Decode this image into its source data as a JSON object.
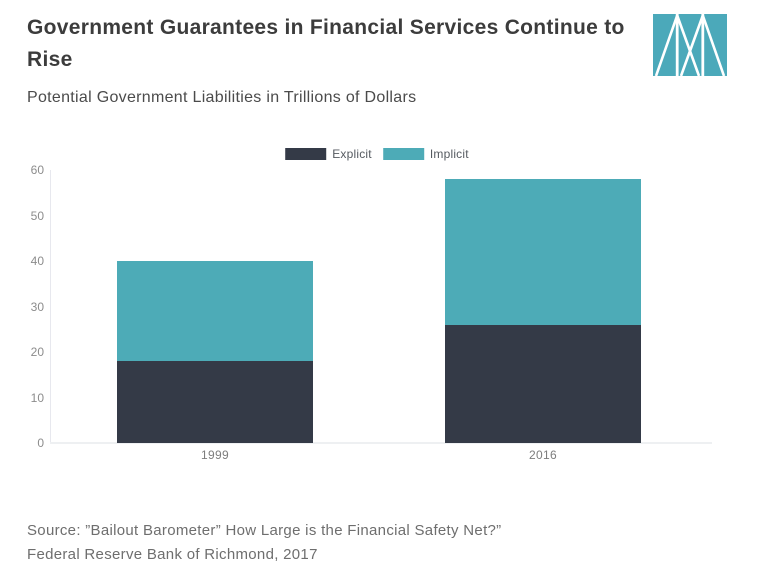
{
  "header": {
    "title_lines": [
      "Government Guarantees in Financial Services Continue to",
      "Rise"
    ],
    "subtitle": "Potential Government Liabilities in Trillions of Dollars",
    "logo": "marketplace-logo"
  },
  "chart_data": {
    "type": "bar",
    "stacked": true,
    "title": "Potential Government Liabilities in Trillions of Dollars",
    "categories": [
      "1999",
      "2016"
    ],
    "series": [
      {
        "name": "Explicit",
        "color": "#343a47",
        "values": [
          18,
          26
        ]
      },
      {
        "name": "Implicit",
        "color": "#4dabb7",
        "values": [
          22,
          32
        ]
      }
    ],
    "totals": [
      40,
      58
    ],
    "xlabel": "",
    "ylabel": "Trillions of Dollars",
    "ylim": [
      0,
      60
    ],
    "yticks": [
      0,
      10,
      20,
      30,
      40,
      50,
      60
    ],
    "grid": false,
    "legend_position": "top-center"
  },
  "source": {
    "line1": "Source: ”Bailout Barometer” How Large is the Financial Safety Net?”",
    "line2": "Federal Reserve Bank of Richmond, 2017"
  },
  "colors": {
    "explicit": "#343a47",
    "implicit": "#4dabb7",
    "logo_teal": "#4ba9ba",
    "axis_line": "#e7e8ee",
    "baseline": "#eef0f2"
  }
}
